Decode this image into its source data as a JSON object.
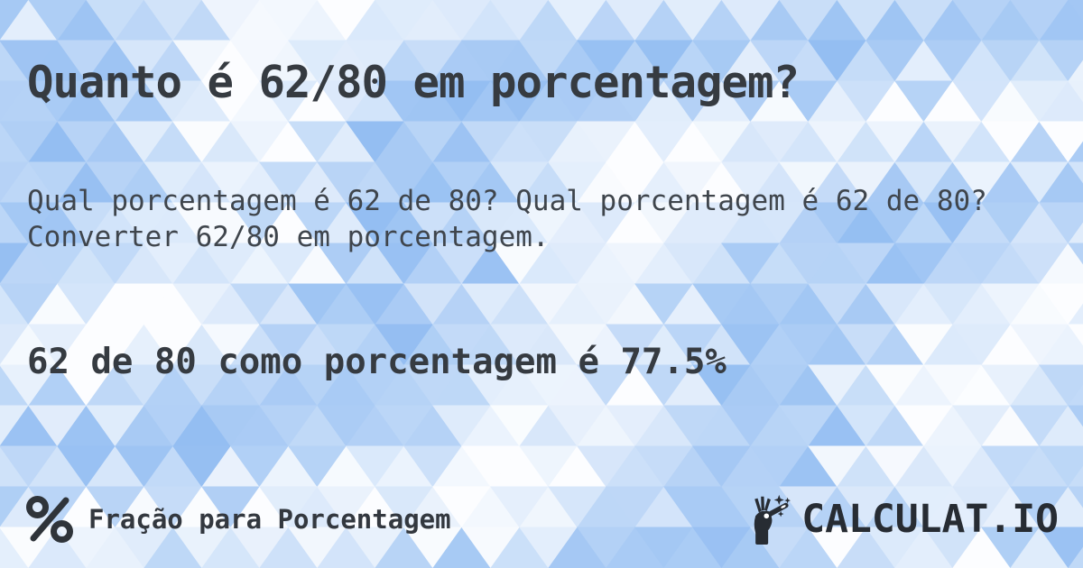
{
  "header": {
    "title": "Quanto é 62/80 em porcentagem?"
  },
  "body": {
    "question": "Qual porcentagem é 62 de 80? Qual porcentagem é 62 de 80? Converter 62/80 em porcentagem.",
    "answer": "62 de 80 como porcentagem é 77.5%"
  },
  "footer": {
    "category_icon": "percent-icon",
    "category_label": "Fração para Porcentagem",
    "brand_icon": "magic-wand-hand-icon",
    "brand_name": "CALCULAT.IO"
  },
  "colors": {
    "text_dark": "#363b41",
    "text_body": "#3f454c",
    "brand_dark": "#272c33",
    "icon_dark": "#2f343a",
    "pattern_white": "#ffffff",
    "pattern_blue": "#94bef2"
  }
}
